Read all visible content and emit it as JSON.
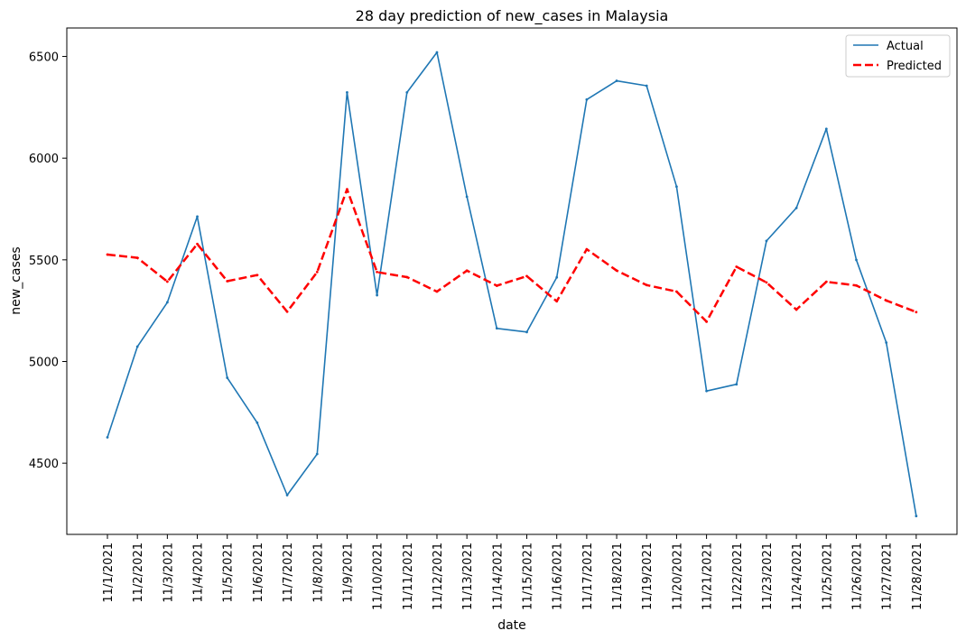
{
  "chart_data": {
    "type": "line",
    "title": "28 day prediction of new_cases in Malaysia",
    "xlabel": "date",
    "ylabel": "new_cases",
    "ylim": [
      4150,
      6640
    ],
    "yticks": [
      4500,
      5000,
      5500,
      6000,
      6500
    ],
    "grid": false,
    "legend_position": "top-right",
    "categories": [
      "11/1/2021",
      "11/2/2021",
      "11/3/2021",
      "11/4/2021",
      "11/5/2021",
      "11/6/2021",
      "11/7/2021",
      "11/8/2021",
      "11/9/2021",
      "11/10/2021",
      "11/11/2021",
      "11/12/2021",
      "11/13/2021",
      "11/14/2021",
      "11/15/2021",
      "11/16/2021",
      "11/17/2021",
      "11/18/2021",
      "11/19/2021",
      "11/20/2021",
      "11/21/2021",
      "11/22/2021",
      "11/23/2021",
      "11/24/2021",
      "11/25/2021",
      "11/26/2021",
      "11/27/2021",
      "11/28/2021"
    ],
    "series": [
      {
        "name": "Actual",
        "color": "#1f77b4",
        "style": "solid",
        "values": [
          4627,
          5073,
          5291,
          5713,
          4920,
          4699,
          4343,
          4545,
          6323,
          5326,
          6323,
          6520,
          5810,
          5163,
          5145,
          5414,
          6288,
          6380,
          6356,
          5860,
          4855,
          4888,
          5593,
          5755,
          6144,
          5500,
          5093,
          4240
        ]
      },
      {
        "name": "Predicted",
        "color": "#ff0000",
        "style": "dashed",
        "values": [
          5526,
          5510,
          5393,
          5578,
          5395,
          5425,
          5245,
          5440,
          5847,
          5440,
          5415,
          5344,
          5447,
          5373,
          5420,
          5296,
          5552,
          5447,
          5376,
          5344,
          5196,
          5466,
          5389,
          5255,
          5392,
          5374,
          5300,
          5243
        ]
      }
    ]
  }
}
